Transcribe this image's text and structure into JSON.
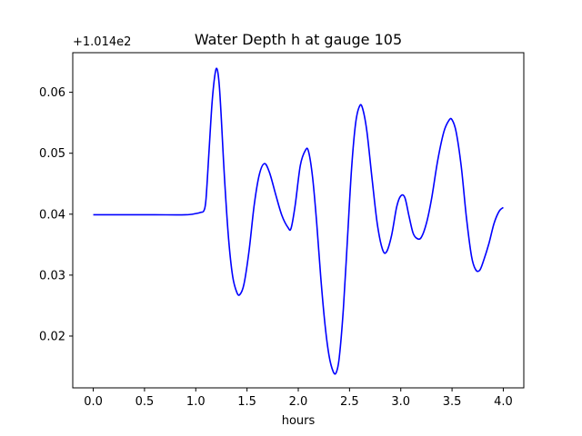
{
  "chart_data": {
    "type": "line",
    "title": "Water Depth h at gauge 105",
    "xlabel": "hours",
    "ylabel": "",
    "y_offset_label": "+1.014e2",
    "xlim": [
      -0.2,
      4.2
    ],
    "ylim": [
      0.0115,
      0.0665
    ],
    "x_ticks": [
      0.0,
      0.5,
      1.0,
      1.5,
      2.0,
      2.5,
      3.0,
      3.5,
      4.0
    ],
    "x_tick_labels": [
      "0.0",
      "0.5",
      "1.0",
      "1.5",
      "2.0",
      "2.5",
      "3.0",
      "3.5",
      "4.0"
    ],
    "y_ticks": [
      0.02,
      0.03,
      0.04,
      0.05,
      0.06
    ],
    "y_tick_labels": [
      "0.02",
      "0.03",
      "0.04",
      "0.05",
      "0.06"
    ],
    "grid": false,
    "line_color": "#0000ff",
    "series": [
      {
        "x": [
          0.0,
          0.3,
          0.6,
          0.9,
          1.0,
          1.05,
          1.08,
          1.1,
          1.13,
          1.16,
          1.19,
          1.21,
          1.23,
          1.25,
          1.28,
          1.32,
          1.36,
          1.4,
          1.43,
          1.47,
          1.52,
          1.57,
          1.62,
          1.67,
          1.72,
          1.78,
          1.84,
          1.9,
          1.93,
          1.97,
          2.02,
          2.07,
          2.1,
          2.14,
          2.18,
          2.22,
          2.26,
          2.3,
          2.34,
          2.37,
          2.4,
          2.44,
          2.48,
          2.52,
          2.56,
          2.6,
          2.63,
          2.67,
          2.72,
          2.77,
          2.82,
          2.86,
          2.91,
          2.96,
          3.0,
          3.04,
          3.08,
          3.12,
          3.16,
          3.2,
          3.25,
          3.3,
          3.36,
          3.42,
          3.47,
          3.5,
          3.54,
          3.59,
          3.64,
          3.69,
          3.73,
          3.77,
          3.81,
          3.86,
          3.91,
          3.96,
          4.0
        ],
        "y": [
          0.0399,
          0.0399,
          0.0399,
          0.0399,
          0.0401,
          0.0403,
          0.0406,
          0.0425,
          0.0505,
          0.0585,
          0.0632,
          0.0637,
          0.061,
          0.0555,
          0.046,
          0.036,
          0.0298,
          0.0272,
          0.0268,
          0.0285,
          0.034,
          0.0415,
          0.0465,
          0.0483,
          0.0468,
          0.0432,
          0.0398,
          0.0378,
          0.0377,
          0.0415,
          0.048,
          0.0505,
          0.0503,
          0.046,
          0.0385,
          0.0295,
          0.022,
          0.0168,
          0.0142,
          0.014,
          0.0165,
          0.0245,
          0.036,
          0.0475,
          0.055,
          0.0578,
          0.0572,
          0.0535,
          0.0458,
          0.0385,
          0.0343,
          0.0338,
          0.0365,
          0.0412,
          0.043,
          0.0427,
          0.0397,
          0.0369,
          0.036,
          0.0362,
          0.0385,
          0.0425,
          0.0488,
          0.0535,
          0.0554,
          0.0555,
          0.0535,
          0.0478,
          0.0395,
          0.0331,
          0.0309,
          0.0308,
          0.0325,
          0.0352,
          0.0385,
          0.0405,
          0.0411
        ]
      }
    ]
  }
}
